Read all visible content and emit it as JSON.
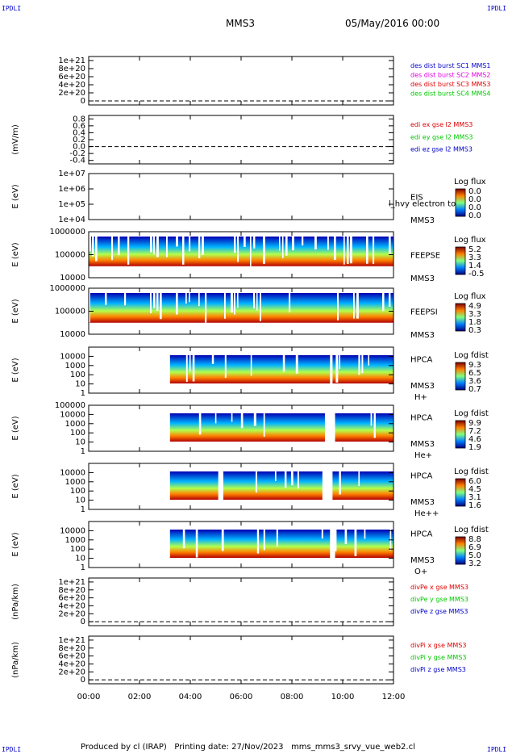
{
  "corner_label": "IPDLI",
  "header": {
    "spacecraft": "MMS3",
    "date": "05/May/2016 00:00"
  },
  "footer": {
    "produced_by": "Produced by cl (IRAP)",
    "printing_date": "Printing date: 27/Nov/2023",
    "script": "mms_mms3_srvy_vue_web2.cl"
  },
  "chart_data": [
    {
      "type": "line",
      "id": "mmsdist",
      "ylim": [
        -0.1,
        1.1
      ],
      "yscale": "linear",
      "ticks": [
        "1e+21",
        "8e+20",
        "6e+20",
        "4e+20",
        "2e+20",
        "0"
      ],
      "tick_values": [
        1.0,
        0.8,
        0.6,
        0.4,
        0.2,
        0.0
      ],
      "ylabel": "",
      "dashed_zero": true,
      "legend": [
        {
          "text": "des dist burst SC1 MMS1",
          "color": "#0000c8"
        },
        {
          "text": "des dist burst SC2 MMS2",
          "color": "#e000e0"
        },
        {
          "text": "des dist burst SC3 MMS3",
          "color": "#e00000"
        },
        {
          "text": "des dist burst SC4 MMS4",
          "color": "#00c800"
        }
      ]
    },
    {
      "type": "line",
      "id": "edi",
      "ylim": [
        -0.5,
        0.9
      ],
      "yscale": "linear",
      "ticks": [
        "0.8",
        "0.6",
        "0.4",
        "0.2",
        "0.0",
        "-0.2",
        "-0.4"
      ],
      "tick_values": [
        0.8,
        0.6,
        0.4,
        0.2,
        0.0,
        -0.2,
        -0.4
      ],
      "ylabel": "(mV/m)",
      "dashed_zero": true,
      "legend": [
        {
          "text": "edi ex gse l2 MMS3",
          "color": "#e00000"
        },
        {
          "text": "edi ey gse l2 MMS3",
          "color": "#00c800"
        },
        {
          "text": "edi ez gse l2 MMS3",
          "color": "#0000c8"
        }
      ]
    },
    {
      "type": "heatmap",
      "id": "eis",
      "yscale": "log",
      "ylim": [
        4,
        7
      ],
      "ticks": [
        "1e+07",
        "1e+06",
        "1e+05",
        "1e+04"
      ],
      "tick_values": [
        7,
        6,
        5,
        4
      ],
      "ylabel": "E (eV)",
      "labels": [
        "EIS",
        "MMS3"
      ],
      "overlay_text": "l_hvy electron to",
      "cbar_title": "Log flux",
      "cbar_ticks": [
        "0.0",
        "0.0",
        "0.0",
        "0.0"
      ],
      "coverage": []
    },
    {
      "type": "heatmap",
      "id": "feeps_e",
      "yscale": "log",
      "ylim": [
        4,
        6
      ],
      "ticks": [
        "1000000",
        "100000",
        "10000"
      ],
      "tick_values": [
        6,
        5,
        4
      ],
      "ylabel": "E (eV)",
      "labels": [
        "FEEPSE",
        "MMS3"
      ],
      "cbar_title": "Log flux",
      "cbar_ticks": [
        "5.2",
        "3.3",
        "1.4",
        "-0.5"
      ],
      "coverage": [
        [
          0.0,
          12.0
        ]
      ]
    },
    {
      "type": "heatmap",
      "id": "feeps_i",
      "yscale": "log",
      "ylim": [
        4,
        6
      ],
      "ticks": [
        "1000000",
        "100000",
        "10000"
      ],
      "tick_values": [
        6,
        5,
        4
      ],
      "ylabel": "E (eV)",
      "labels": [
        "FEEPSI",
        "MMS3"
      ],
      "cbar_title": "Log flux",
      "cbar_ticks": [
        "4.9",
        "3.3",
        "1.8",
        "0.3"
      ],
      "coverage": [
        [
          0.0,
          12.0
        ]
      ]
    },
    {
      "type": "heatmap",
      "id": "hpca_h",
      "yscale": "log",
      "ylim": [
        0,
        5
      ],
      "ticks": [
        "10000",
        "1000",
        "100",
        "10",
        "1"
      ],
      "tick_values": [
        4,
        3,
        2,
        1,
        0
      ],
      "ylabel": "E (eV)",
      "labels": [
        "HPCA",
        "MMS3",
        "H+"
      ],
      "cbar_title": "Log fdist",
      "cbar_ticks": [
        "9.3",
        "6.5",
        "3.6",
        "0.7"
      ],
      "coverage": [
        [
          3.2,
          9.5
        ],
        [
          9.6,
          12.0
        ]
      ]
    },
    {
      "type": "heatmap",
      "id": "hpca_he",
      "yscale": "log",
      "ylim": [
        0,
        5
      ],
      "ticks": [
        "100000",
        "10000",
        "1000",
        "100",
        "10",
        "1"
      ],
      "tick_values": [
        5,
        4,
        3,
        2,
        1,
        0
      ],
      "ylabel": "E (eV)",
      "labels": [
        "HPCA",
        "MMS3",
        "He+"
      ],
      "cbar_title": "Log fdist",
      "cbar_ticks": [
        "9.9",
        "7.2",
        "4.6",
        "1.9"
      ],
      "coverage": [
        [
          3.2,
          9.3
        ],
        [
          9.7,
          12.0
        ]
      ]
    },
    {
      "type": "heatmap",
      "id": "hpca_hepp",
      "yscale": "log",
      "ylim": [
        0,
        5
      ],
      "ticks": [
        "10000",
        "1000",
        "100",
        "10",
        "1"
      ],
      "tick_values": [
        4,
        3,
        2,
        1,
        0
      ],
      "ylabel": "E (eV)",
      "labels": [
        "HPCA",
        "MMS3",
        "He++"
      ],
      "cbar_title": "Log fdist",
      "cbar_ticks": [
        "6.0",
        "4.5",
        "3.1",
        "1.6"
      ],
      "coverage": [
        [
          3.2,
          5.1
        ],
        [
          5.3,
          9.2
        ],
        [
          9.6,
          12.0
        ]
      ]
    },
    {
      "type": "heatmap",
      "id": "hpca_o",
      "yscale": "log",
      "ylim": [
        0,
        5
      ],
      "ticks": [
        "10000",
        "1000",
        "100",
        "10",
        "1"
      ],
      "tick_values": [
        4,
        3,
        2,
        1,
        0
      ],
      "ylabel": "E (eV)",
      "labels": [
        "HPCA",
        "MMS3",
        "O+"
      ],
      "cbar_title": "Log fdist",
      "cbar_ticks": [
        "8.8",
        "6.9",
        "5.0",
        "3.2"
      ],
      "coverage": [
        [
          3.2,
          9.5
        ],
        [
          9.7,
          12.0
        ]
      ]
    },
    {
      "type": "line",
      "id": "divpe",
      "ylim": [
        -0.1,
        1.1
      ],
      "yscale": "linear",
      "ticks": [
        "1e+21",
        "8e+20",
        "6e+20",
        "4e+20",
        "2e+20",
        "0"
      ],
      "tick_values": [
        1.0,
        0.8,
        0.6,
        0.4,
        0.2,
        0.0
      ],
      "ylabel": "(nPa/km)",
      "dashed_zero": true,
      "legend": [
        {
          "text": "divPe x gse MMS3",
          "color": "#e00000"
        },
        {
          "text": "divPe y gse MMS3",
          "color": "#00c800"
        },
        {
          "text": "divPe z gse MMS3",
          "color": "#0000c8"
        }
      ]
    },
    {
      "type": "line",
      "id": "divpi",
      "ylim": [
        -0.1,
        1.1
      ],
      "yscale": "linear",
      "ticks": [
        "1e+21",
        "8e+20",
        "6e+20",
        "4e+20",
        "2e+20",
        "0"
      ],
      "tick_values": [
        1.0,
        0.8,
        0.6,
        0.4,
        0.2,
        0.0
      ],
      "ylabel": "(nPa/km)",
      "dashed_zero": true,
      "legend": [
        {
          "text": "divPi x gse MMS3",
          "color": "#e00000"
        },
        {
          "text": "divPi y gse MMS3",
          "color": "#00c800"
        },
        {
          "text": "divPi z gse MMS3",
          "color": "#0000c8"
        }
      ]
    }
  ],
  "time_axis": {
    "range_hours": [
      0,
      12
    ],
    "tick_labels": [
      "00:00",
      "02:00",
      "04:00",
      "06:00",
      "08:00",
      "10:00",
      "12:00"
    ]
  }
}
